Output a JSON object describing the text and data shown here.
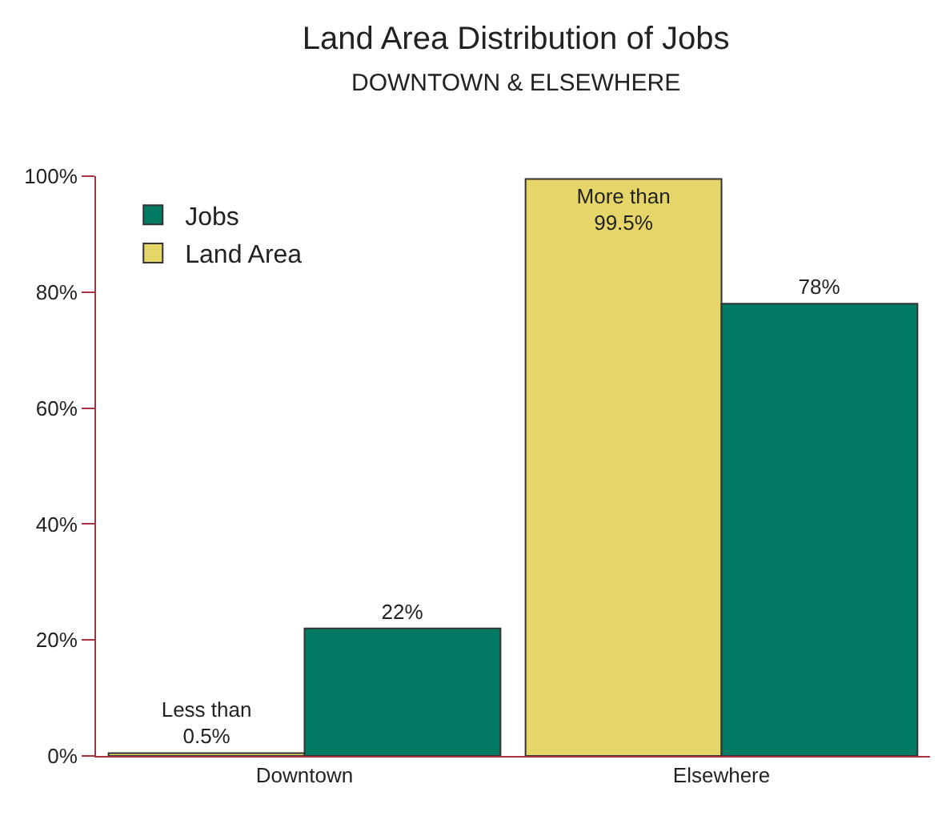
{
  "chart_data": {
    "type": "bar",
    "title": "Land Area Distribution of Jobs",
    "subtitle": "DOWNTOWN & ELSEWHERE",
    "categories": [
      "Downtown",
      "Elsewhere"
    ],
    "series": [
      {
        "name": "Land Area",
        "color": "#e6d66a",
        "values": [
          0.5,
          99.5
        ],
        "value_labels": [
          "Less than\n0.5%",
          "More than\n99.5%"
        ]
      },
      {
        "name": "Jobs",
        "color": "#007a63",
        "values": [
          22,
          78
        ],
        "value_labels": [
          "22%",
          "78%"
        ]
      }
    ],
    "ylim": [
      0,
      100
    ],
    "yticks": [
      {
        "value": 0,
        "label": "0%"
      },
      {
        "value": 20,
        "label": "20%"
      },
      {
        "value": 40,
        "label": "40%"
      },
      {
        "value": 60,
        "label": "60%"
      },
      {
        "value": 80,
        "label": "80%"
      },
      {
        "value": 100,
        "label": "100%"
      }
    ],
    "grid": false,
    "legend": "top left"
  }
}
